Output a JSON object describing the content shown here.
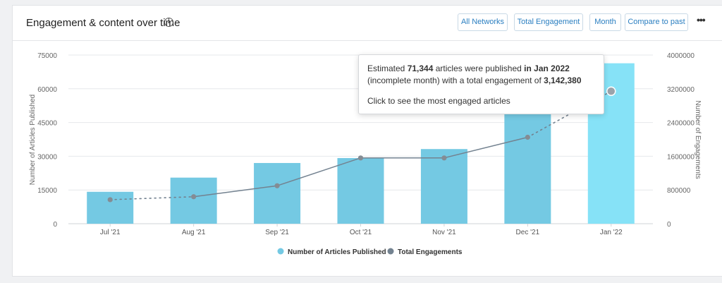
{
  "card": {
    "title": "Engagement & content over time",
    "info_glyph": "i",
    "buttons": [
      "All Networks",
      "Total Engagement",
      "Month",
      "Compare to past"
    ],
    "more_glyph": "•••"
  },
  "tooltip": {
    "line1_a": "Estimated ",
    "line1_b": "71,344",
    "line1_c": " articles were published ",
    "line1_d": "in Jan 2022",
    "line1_e": " (incomplete month) with a total engagement of ",
    "line1_f": "3,142,380",
    "cta": "Click to see the most engaged articles"
  },
  "chart_data": {
    "type": "bar+line",
    "categories": [
      "Jul '21",
      "Aug '21",
      "Sep '21",
      "Oct '21",
      "Nov '21",
      "Dec '21",
      "Jan '22"
    ],
    "series": [
      {
        "name": "Number of Articles Published",
        "type": "bar",
        "axis": "left",
        "color": "#74c9e3",
        "highlight_color": "#86e2f7",
        "values": [
          14200,
          20500,
          27000,
          29200,
          33200,
          49500,
          71344
        ]
      },
      {
        "name": "Total Engagements",
        "type": "line",
        "axis": "right",
        "color": "#738290",
        "values": [
          570000,
          640000,
          900000,
          1560000,
          1560000,
          2050000,
          3142380
        ]
      }
    ],
    "ylabel": "Number of Articles Published",
    "y2label": "Number of Engagements",
    "ylim": [
      0,
      75000
    ],
    "y2lim": [
      0,
      4000000
    ],
    "yticks": [
      "0",
      "15000",
      "30000",
      "45000",
      "60000",
      "75000"
    ],
    "y2ticks": [
      "0",
      "800000",
      "1600000",
      "2400000",
      "3200000",
      "4000000"
    ],
    "grid": true,
    "legend_position": "bottom"
  }
}
